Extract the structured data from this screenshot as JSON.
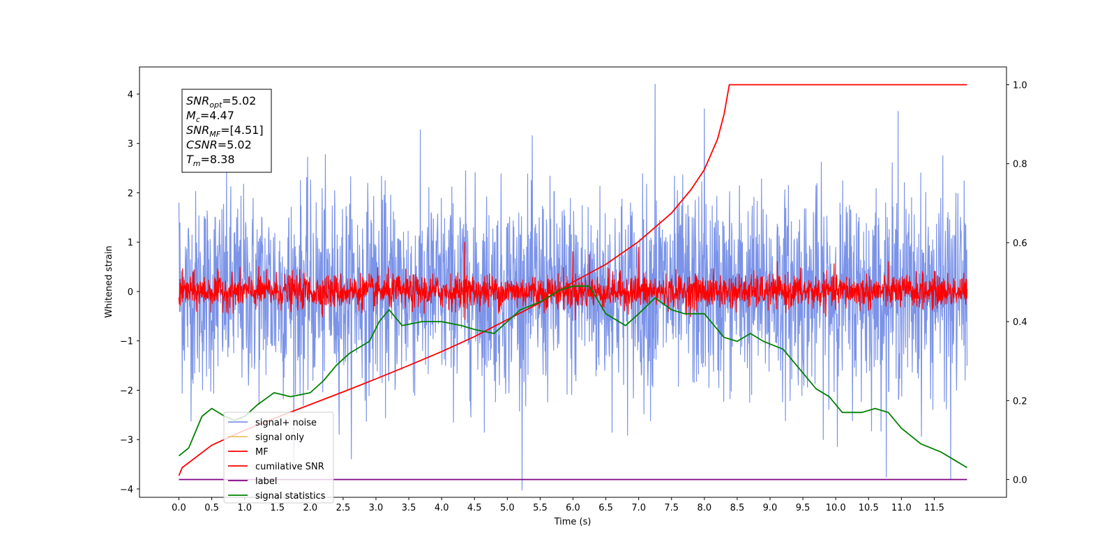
{
  "chart_data": {
    "type": "line",
    "xlabel": "Time (s)",
    "ylabel": "Whitened strain",
    "xlim": [
      -0.6,
      12.6
    ],
    "ylim": [
      -4.17,
      4.55
    ],
    "y2lim": [
      -0.045,
      1.045
    ],
    "x_ticks": [
      "0.0",
      "0.5",
      "1.0",
      "1.5",
      "2.0",
      "2.5",
      "3.0",
      "3.5",
      "4.0",
      "4.5",
      "5.0",
      "5.5",
      "6.0",
      "6.5",
      "7.0",
      "7.5",
      "8.0",
      "8.5",
      "9.0",
      "9.5",
      "10.0",
      "10.5",
      "11.0",
      "11.5"
    ],
    "y_ticks": [
      "4",
      "3",
      "2",
      "1",
      "0",
      "−1",
      "−2",
      "−3",
      "−4"
    ],
    "y2_ticks": [
      "1.0",
      "0.8",
      "0.6",
      "0.4",
      "0.2",
      "0.0"
    ],
    "legend_position": "lower-left",
    "info_box": [
      {
        "base": "SNR",
        "sub": "opt",
        "value": "=5.02"
      },
      {
        "base": "M",
        "sub": "c",
        "value": "=4.47"
      },
      {
        "base": "SNR",
        "sub": "MF",
        "value": "=[4.51]"
      },
      {
        "base": "CSNR",
        "sub": "",
        "value": "=5.02"
      },
      {
        "base": "T",
        "sub": "m",
        "value": "=8.38"
      }
    ],
    "series": [
      {
        "name": "signal+ noise",
        "color": "#7b93e8",
        "axis": "left",
        "kind": "noise",
        "x_range": [
          0,
          12.0
        ],
        "std": 1.0,
        "peaks": [
          [
            0.0,
            1.8
          ],
          [
            7.25,
            4.2
          ],
          [
            8.0,
            3.7
          ],
          [
            10.95,
            3.65
          ],
          [
            11.75,
            -3.8
          ]
        ]
      },
      {
        "name": "signal only",
        "color": "#f5c26b",
        "axis": "left",
        "kind": "hidden"
      },
      {
        "name": "MF",
        "color": "#ff0000",
        "axis": "left",
        "kind": "noise",
        "x_range": [
          0,
          12.0
        ],
        "std": 0.17,
        "peaks": [
          [
            4.35,
            1.0
          ],
          [
            6.0,
            0.8
          ],
          [
            6.25,
            0.75
          ],
          [
            7.0,
            0.9
          ]
        ]
      },
      {
        "name": "cumilative SNR",
        "color": "#ff0000",
        "axis": "right",
        "kind": "line",
        "x": [
          0,
          0.05,
          0.5,
          1.0,
          1.5,
          2.0,
          2.5,
          3.0,
          3.5,
          4.0,
          4.5,
          5.0,
          5.5,
          6.0,
          6.5,
          7.0,
          7.5,
          7.8,
          8.0,
          8.2,
          8.3,
          8.38,
          9.0,
          10.0,
          11.0,
          12.0
        ],
        "y": [
          0.01,
          0.03,
          0.087,
          0.125,
          0.158,
          0.19,
          0.222,
          0.255,
          0.289,
          0.324,
          0.362,
          0.405,
          0.448,
          0.5,
          0.545,
          0.603,
          0.675,
          0.735,
          0.785,
          0.862,
          0.925,
          1.0,
          1.0,
          1.0,
          1.0,
          1.0
        ]
      },
      {
        "name": "label",
        "color": "#800080",
        "axis": "right",
        "kind": "line",
        "x": [
          0,
          12.0
        ],
        "y": [
          0.0,
          0.0
        ]
      },
      {
        "name": "signal statistics",
        "color": "#008000",
        "axis": "right",
        "kind": "line",
        "x": [
          0,
          0.15,
          0.35,
          0.5,
          0.7,
          0.85,
          1.0,
          1.2,
          1.45,
          1.7,
          2.0,
          2.2,
          2.4,
          2.6,
          2.9,
          3.05,
          3.2,
          3.4,
          3.7,
          4.0,
          4.3,
          4.5,
          4.8,
          5.0,
          5.2,
          5.5,
          5.8,
          6.0,
          6.25,
          6.5,
          6.8,
          7.0,
          7.25,
          7.5,
          7.7,
          8.0,
          8.3,
          8.5,
          8.7,
          8.9,
          9.2,
          9.4,
          9.7,
          9.9,
          10.1,
          10.4,
          10.6,
          10.8,
          11.0,
          11.3,
          11.6,
          11.8,
          12.0
        ],
        "y": [
          0.06,
          0.08,
          0.16,
          0.18,
          0.16,
          0.15,
          0.16,
          0.19,
          0.22,
          0.21,
          0.22,
          0.25,
          0.29,
          0.32,
          0.35,
          0.4,
          0.43,
          0.39,
          0.4,
          0.4,
          0.39,
          0.38,
          0.37,
          0.4,
          0.43,
          0.45,
          0.48,
          0.49,
          0.49,
          0.42,
          0.39,
          0.42,
          0.46,
          0.43,
          0.42,
          0.42,
          0.36,
          0.35,
          0.37,
          0.35,
          0.33,
          0.29,
          0.23,
          0.21,
          0.17,
          0.17,
          0.18,
          0.17,
          0.13,
          0.09,
          0.07,
          0.05,
          0.03
        ]
      }
    ]
  }
}
